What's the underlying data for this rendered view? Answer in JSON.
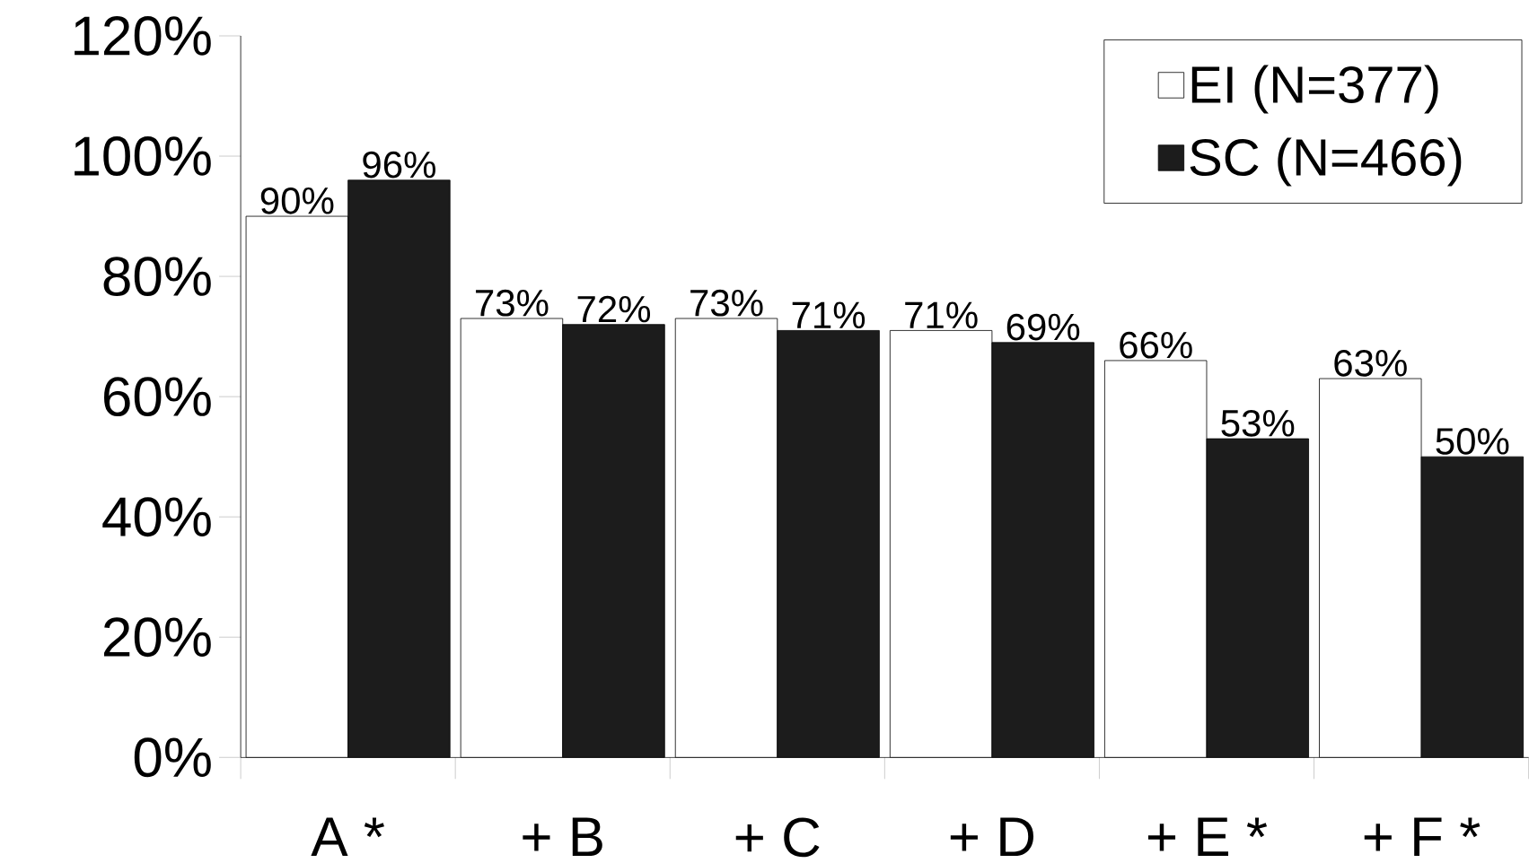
{
  "chart_data": {
    "type": "bar",
    "categories": [
      "A *",
      "+ B",
      "+ C",
      "+ D",
      "+ E *",
      "+ F *"
    ],
    "series": [
      {
        "name": "EI (N=377)",
        "color": "#ffffff",
        "values": [
          90,
          73,
          73,
          71,
          66,
          63
        ],
        "value_labels": [
          "90%",
          "73%",
          "73%",
          "71%",
          "66%",
          "63%"
        ]
      },
      {
        "name": "SC (N=466)",
        "color": "#1c1c1c",
        "values": [
          96,
          72,
          71,
          69,
          53,
          50
        ],
        "value_labels": [
          "96%",
          "72%",
          "71%",
          "69%",
          "53%",
          "50%"
        ]
      }
    ],
    "ylim": [
      0,
      120
    ],
    "yticks": [
      {
        "value": 0,
        "label": "0%"
      },
      {
        "value": 20,
        "label": "20%"
      },
      {
        "value": 40,
        "label": "40%"
      },
      {
        "value": 60,
        "label": "60%"
      },
      {
        "value": 80,
        "label": "80%"
      },
      {
        "value": 100,
        "label": "100%"
      },
      {
        "value": 120,
        "label": "120%"
      }
    ],
    "legend": "top right"
  }
}
